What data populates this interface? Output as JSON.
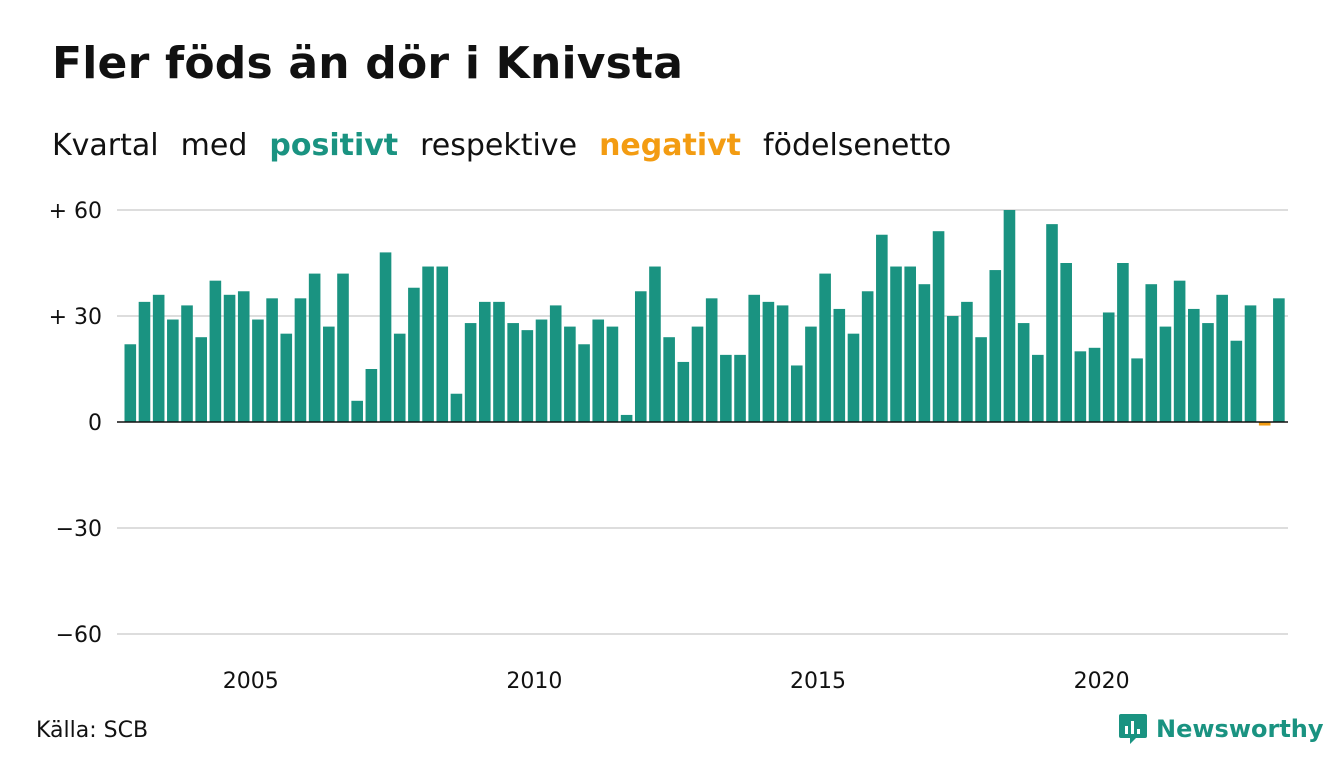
{
  "header": {
    "title": "Fler föds än dör i Knivsta",
    "subtitle": {
      "part1": "Kvartal",
      "part2": "med",
      "positive": "positivt",
      "part3": "respektive",
      "negative": "negativt",
      "part4": "födelsenetto"
    }
  },
  "footer": {
    "source": "Källa: SCB",
    "brand": "Newsworthy"
  },
  "colors": {
    "positive": "#1a9381",
    "negative": "#f39c12",
    "grid": "#dddddd",
    "axis": "#111111"
  },
  "chart_data": {
    "type": "bar",
    "x_start": "2003 Q2",
    "values": [
      22,
      34,
      36,
      29,
      33,
      24,
      40,
      36,
      37,
      29,
      35,
      25,
      35,
      42,
      27,
      42,
      6,
      15,
      48,
      25,
      38,
      44,
      44,
      8,
      28,
      34,
      34,
      28,
      26,
      29,
      33,
      27,
      22,
      29,
      27,
      2,
      37,
      44,
      24,
      17,
      27,
      35,
      19,
      19,
      36,
      34,
      33,
      16,
      27,
      42,
      32,
      25,
      37,
      53,
      44,
      44,
      39,
      54,
      30,
      34,
      24,
      43,
      60,
      28,
      19,
      56,
      45,
      20,
      21,
      31,
      45,
      18,
      39,
      27,
      40,
      32,
      28,
      36,
      23,
      33,
      -1,
      35
    ],
    "ylim": [
      -60,
      60
    ],
    "y_ticks": [
      {
        "value": 60,
        "label": "+ 60"
      },
      {
        "value": 30,
        "label": "+ 30"
      },
      {
        "value": 0,
        "label": "0"
      },
      {
        "value": -30,
        "label": "−30"
      },
      {
        "value": -60,
        "label": "−60"
      }
    ],
    "x_ticks": [
      {
        "year": 2005,
        "label": "2005"
      },
      {
        "year": 2010,
        "label": "2010"
      },
      {
        "year": 2015,
        "label": "2015"
      },
      {
        "year": 2020,
        "label": "2020"
      }
    ],
    "grid": true,
    "legend": "none"
  }
}
